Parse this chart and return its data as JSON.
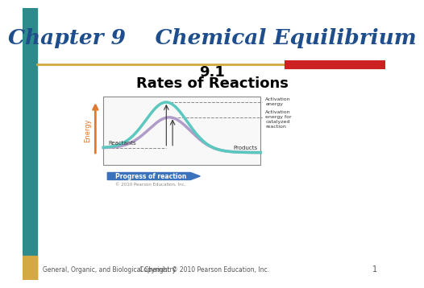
{
  "title": "Chapter 9    Chemical Equilibrium",
  "subtitle1": "9.1",
  "subtitle2": "Rates of Reactions",
  "footer_left": "General, Organic, and Biological Chemistry",
  "footer_right": "Copyright © 2010 Pearson Education, Inc.",
  "footer_number": "1",
  "title_color": "#1F4E8C",
  "header_bar_left_color": "#D4A843",
  "header_bar_right_color": "#CC2222",
  "left_bar_color": "#2E8B8B",
  "left_bar_bottom_color": "#D4A843",
  "bg_color": "#FFFFFF",
  "curve_teal_color": "#5BC8C0",
  "curve_purple_color": "#B09CC8",
  "arrow_color": "#E07830",
  "progress_arrow_color": "#3A72BB",
  "progress_arrow_text_color": "#FFFFFF",
  "label_reactants": "Reactants",
  "label_products": "Products",
  "label_activation": "Activation\nenergy",
  "label_activation_cat": "Activation\nenergy for\ncatalyzed\nreaction",
  "label_energy": "Energy",
  "label_progress": "Progress of reaction",
  "copyright": "© 2010 Pearson Education, Inc."
}
